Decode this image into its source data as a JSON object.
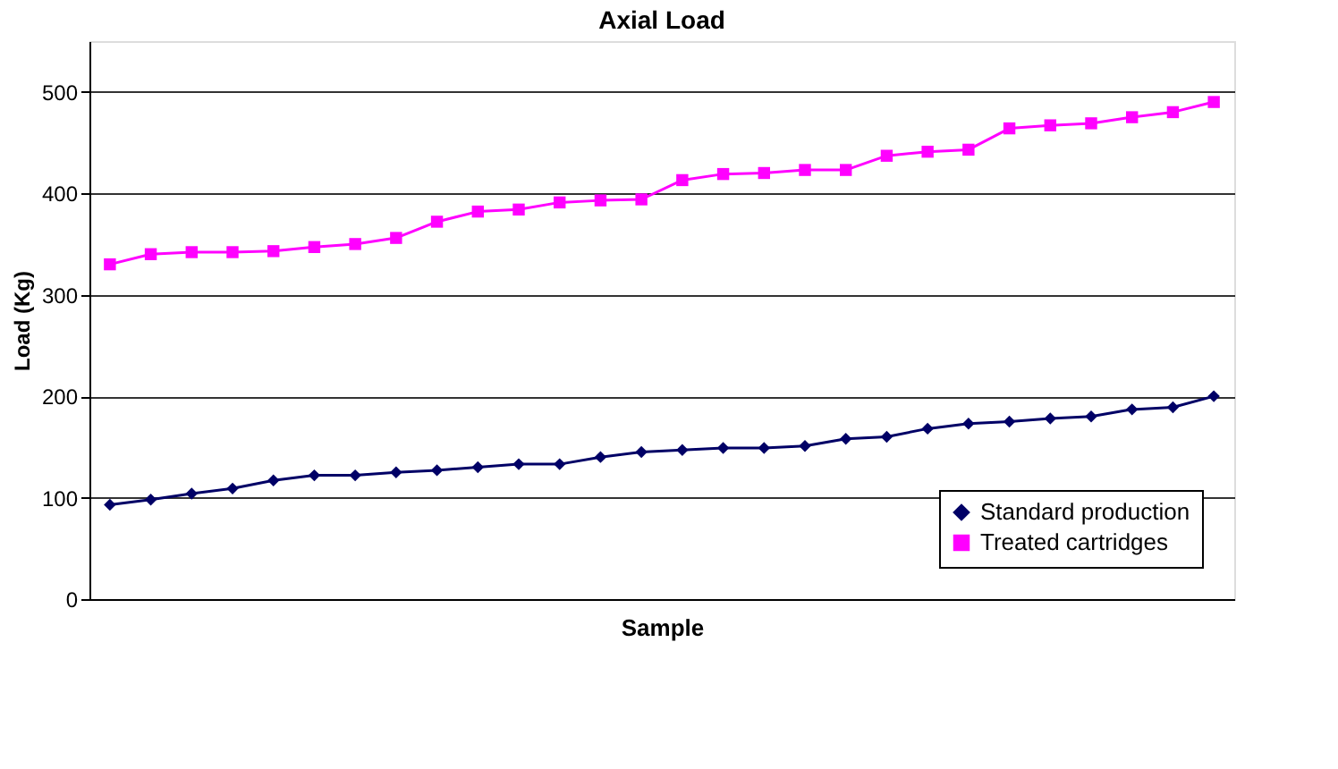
{
  "chart_data": {
    "type": "line",
    "title": "Axial Load",
    "xlabel": "Sample",
    "ylabel": "Load (Kg)",
    "categories": [
      null,
      null,
      null,
      null,
      null,
      null,
      null,
      null,
      null,
      null,
      null,
      null,
      null,
      null,
      null,
      null,
      null,
      null,
      null,
      null,
      null,
      null,
      null,
      null,
      null,
      null,
      null,
      null
    ],
    "series": [
      {
        "name": "Standard production",
        "color": "#000066",
        "marker": "diamond",
        "values": [
          93,
          98,
          104,
          109,
          117,
          122,
          122,
          125,
          127,
          130,
          133,
          133,
          140,
          145,
          147,
          149,
          149,
          151,
          158,
          160,
          168,
          173,
          175,
          178,
          180,
          187,
          189,
          200
        ]
      },
      {
        "name": "Treated cartridges",
        "color": "#ff00ff",
        "marker": "square",
        "values": [
          330,
          340,
          342,
          342,
          343,
          347,
          350,
          356,
          372,
          382,
          384,
          391,
          393,
          394,
          413,
          419,
          420,
          423,
          423,
          437,
          441,
          443,
          464,
          467,
          469,
          475,
          480,
          490
        ]
      }
    ],
    "ylim": [
      0,
      550
    ],
    "yticks": [
      0,
      100,
      200,
      300,
      400,
      500
    ],
    "grid": "y",
    "legend": "bottom right",
    "tick_labels": "y"
  }
}
